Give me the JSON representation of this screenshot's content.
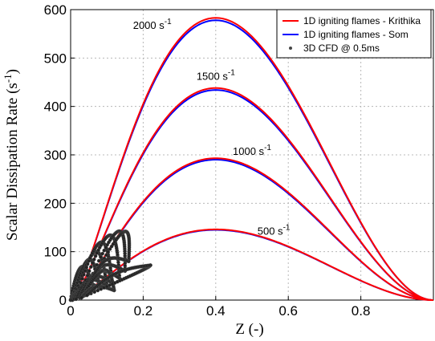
{
  "chart_data": {
    "type": "line",
    "title": "",
    "xlabel": "Z (-)",
    "ylabel": "Scalar Dissipation Rate (s-1)",
    "ylabel_base": "Scalar Dissipation Rate (s",
    "ylabel_sup": "-1",
    "ylabel_close": ")",
    "xlim": [
      0,
      1
    ],
    "ylim": [
      0,
      600
    ],
    "xticks": [
      0,
      0.2,
      0.4,
      0.6,
      0.8
    ],
    "xtick_labels": [
      "0",
      "0.2",
      "0.4",
      "0.6",
      "0.8"
    ],
    "yticks": [
      0,
      100,
      200,
      300,
      400,
      500,
      600
    ],
    "ytick_labels": [
      "0",
      "100",
      "200",
      "300",
      "400",
      "500",
      "600"
    ],
    "grid": true,
    "legend_position": "top-right",
    "legend": [
      {
        "label": "1D igniting flames - Krithika",
        "color": "#ff0000",
        "style": "line"
      },
      {
        "label": "1D igniting flames - Som",
        "color": "#0000ff",
        "style": "line"
      },
      {
        "label": "3D CFD @ 0.5ms",
        "color": "#000000",
        "style": "marker"
      }
    ],
    "series": [
      {
        "name": "1D igniting flames - Krithika",
        "color": "#ff0000",
        "peaks": [
          146,
          293,
          438,
          583
        ]
      },
      {
        "name": "1D igniting flames - Som",
        "color": "#0000ff",
        "peaks": [
          145,
          290,
          434,
          578
        ]
      }
    ],
    "annotations": [
      {
        "base": "2000 s",
        "sup": "-1",
        "x": 0.225,
        "y": 560
      },
      {
        "base": "1500 s",
        "sup": "-1",
        "x": 0.4,
        "y": 455
      },
      {
        "base": "1000 s",
        "sup": "-1",
        "x": 0.5,
        "y": 300
      },
      {
        "base": "500 s",
        "sup": "-1",
        "x": 0.56,
        "y": 135
      }
    ],
    "scatter_loops": [
      {
        "z0": 0.0,
        "y0": 0,
        "z1": 0.065,
        "y1": 20,
        "zp": 0.035,
        "yp": 70
      },
      {
        "z0": 0.005,
        "y0": 0,
        "z1": 0.08,
        "y1": 25,
        "zp": 0.055,
        "yp": 85
      },
      {
        "z0": 0.01,
        "y0": 2,
        "z1": 0.1,
        "y1": 30,
        "zp": 0.075,
        "yp": 100
      },
      {
        "z0": 0.015,
        "y0": 2,
        "z1": 0.115,
        "y1": 35,
        "zp": 0.09,
        "yp": 120
      },
      {
        "z0": 0.025,
        "y0": 5,
        "z1": 0.135,
        "y1": 45,
        "zp": 0.115,
        "yp": 133
      },
      {
        "z0": 0.035,
        "y0": 8,
        "z1": 0.15,
        "y1": 60,
        "zp": 0.14,
        "yp": 140
      },
      {
        "z0": 0.04,
        "y0": 10,
        "z1": 0.16,
        "y1": 80,
        "zp": 0.155,
        "yp": 138
      },
      {
        "z0": 0.03,
        "y0": 5,
        "z1": 0.12,
        "y1": 20,
        "zp": 0.1,
        "yp": 60
      },
      {
        "z0": 0.045,
        "y0": 10,
        "z1": 0.22,
        "y1": 72,
        "zp": 0.2,
        "yp": 55
      }
    ]
  }
}
